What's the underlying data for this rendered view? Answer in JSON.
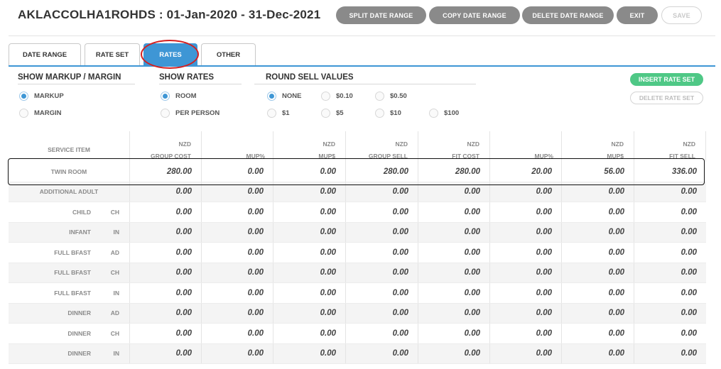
{
  "title": "AKLACCOLHA1ROHDS : 01-Jan-2020 - 31-Dec-2021",
  "toolbar": {
    "split": "SPLIT DATE RANGE",
    "copy": "COPY DATE RANGE",
    "delete": "DELETE DATE RANGE",
    "exit": "EXIT",
    "save": "SAVE"
  },
  "tabs": [
    {
      "label": "DATE RANGE",
      "active": false
    },
    {
      "label": "RATE SET",
      "active": false
    },
    {
      "label": "RATES",
      "active": true
    },
    {
      "label": "OTHER",
      "active": false
    }
  ],
  "sections": {
    "markup": {
      "heading": "SHOW MARKUP / MARGIN",
      "options": [
        {
          "label": "MARKUP",
          "selected": true
        },
        {
          "label": "MARGIN",
          "selected": false
        }
      ]
    },
    "rates": {
      "heading": "SHOW RATES",
      "options": [
        {
          "label": "ROOM",
          "selected": true
        },
        {
          "label": "PER PERSON",
          "selected": false
        }
      ]
    },
    "round": {
      "heading": "ROUND SELL VALUES",
      "options": [
        {
          "label": "NONE",
          "selected": true
        },
        {
          "label": "$0.10",
          "selected": false
        },
        {
          "label": "$0.50",
          "selected": false
        },
        {
          "label": "$1",
          "selected": false
        },
        {
          "label": "$5",
          "selected": false
        },
        {
          "label": "$10",
          "selected": false
        },
        {
          "label": "$100",
          "selected": false
        }
      ]
    }
  },
  "buttons": {
    "insert_rate_set": "INSERT RATE SET",
    "delete_rate_set": "DELETE RATE SET"
  },
  "table": {
    "service_header": "SERVICE ITEM",
    "columns": [
      {
        "currency": "NZD",
        "label": "GROUP COST"
      },
      {
        "currency": "",
        "label": "MUP%"
      },
      {
        "currency": "NZD",
        "label": "MUP$"
      },
      {
        "currency": "NZD",
        "label": "GROUP SELL"
      },
      {
        "currency": "NZD",
        "label": "FIT COST"
      },
      {
        "currency": "",
        "label": "MUP%"
      },
      {
        "currency": "NZD",
        "label": "MUP$"
      },
      {
        "currency": "NZD",
        "label": "FIT SELL"
      }
    ],
    "rows": [
      {
        "name": "TWIN ROOM",
        "code": "",
        "values": [
          "280.00",
          "0.00",
          "0.00",
          "280.00",
          "280.00",
          "20.00",
          "56.00",
          "336.00"
        ]
      },
      {
        "name": "ADDITIONAL ADULT",
        "code": "",
        "values": [
          "0.00",
          "0.00",
          "0.00",
          "0.00",
          "0.00",
          "0.00",
          "0.00",
          "0.00"
        ]
      },
      {
        "name": "CHILD",
        "code": "CH",
        "values": [
          "0.00",
          "0.00",
          "0.00",
          "0.00",
          "0.00",
          "0.00",
          "0.00",
          "0.00"
        ]
      },
      {
        "name": "INFANT",
        "code": "IN",
        "values": [
          "0.00",
          "0.00",
          "0.00",
          "0.00",
          "0.00",
          "0.00",
          "0.00",
          "0.00"
        ]
      },
      {
        "name": "FULL BFAST",
        "code": "AD",
        "values": [
          "0.00",
          "0.00",
          "0.00",
          "0.00",
          "0.00",
          "0.00",
          "0.00",
          "0.00"
        ]
      },
      {
        "name": "FULL BFAST",
        "code": "CH",
        "values": [
          "0.00",
          "0.00",
          "0.00",
          "0.00",
          "0.00",
          "0.00",
          "0.00",
          "0.00"
        ]
      },
      {
        "name": "FULL BFAST",
        "code": "IN",
        "values": [
          "0.00",
          "0.00",
          "0.00",
          "0.00",
          "0.00",
          "0.00",
          "0.00",
          "0.00"
        ]
      },
      {
        "name": "DINNER",
        "code": "AD",
        "values": [
          "0.00",
          "0.00",
          "0.00",
          "0.00",
          "0.00",
          "0.00",
          "0.00",
          "0.00"
        ]
      },
      {
        "name": "DINNER",
        "code": "CH",
        "values": [
          "0.00",
          "0.00",
          "0.00",
          "0.00",
          "0.00",
          "0.00",
          "0.00",
          "0.00"
        ]
      },
      {
        "name": "DINNER",
        "code": "IN",
        "values": [
          "0.00",
          "0.00",
          "0.00",
          "0.00",
          "0.00",
          "0.00",
          "0.00",
          "0.00"
        ]
      }
    ]
  }
}
